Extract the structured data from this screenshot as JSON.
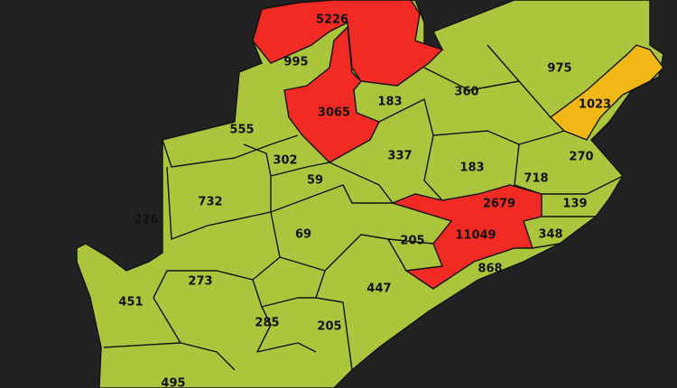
{
  "colors": {
    "background": "#222222",
    "low": "#abc53d",
    "medium": "#f0b717",
    "high": "#f22a24",
    "border": "#111111"
  },
  "districts": [
    {
      "value": "5226",
      "level": "high"
    },
    {
      "value": "995",
      "level": "low"
    },
    {
      "value": "3065",
      "level": "high"
    },
    {
      "value": "183",
      "level": "low"
    },
    {
      "value": "360",
      "level": "low"
    },
    {
      "value": "975",
      "level": "low"
    },
    {
      "value": "1023",
      "level": "medium"
    },
    {
      "value": "555",
      "level": "low"
    },
    {
      "value": "302",
      "level": "low"
    },
    {
      "value": "337",
      "level": "low"
    },
    {
      "value": "183",
      "level": "low"
    },
    {
      "value": "718",
      "level": "low"
    },
    {
      "value": "270",
      "level": "low"
    },
    {
      "value": "59",
      "level": "low"
    },
    {
      "value": "732",
      "level": "low"
    },
    {
      "value": "226",
      "level": "low"
    },
    {
      "value": "2679",
      "level": "high"
    },
    {
      "value": "139",
      "level": "low"
    },
    {
      "value": "69",
      "level": "low"
    },
    {
      "value": "205",
      "level": "low"
    },
    {
      "value": "11049",
      "level": "high"
    },
    {
      "value": "348",
      "level": "low"
    },
    {
      "value": "868",
      "level": "low"
    },
    {
      "value": "273",
      "level": "low"
    },
    {
      "value": "451",
      "level": "low"
    },
    {
      "value": "447",
      "level": "low"
    },
    {
      "value": "285",
      "level": "low"
    },
    {
      "value": "205",
      "level": "low"
    },
    {
      "value": "495",
      "level": "low"
    }
  ]
}
